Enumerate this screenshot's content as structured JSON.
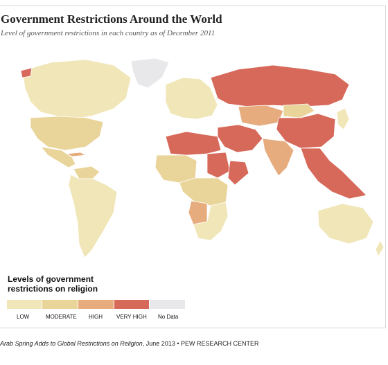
{
  "header": {
    "title": "Government Restrictions Around the World",
    "subtitle": "Level of government restrictions in each country as of December 2011"
  },
  "legend": {
    "title": "Levels of government restrictions on religion",
    "items": [
      {
        "label": "LOW",
        "color": "#f0e6b7"
      },
      {
        "label": "MODERATE",
        "color": "#e9d49a"
      },
      {
        "label": "HIGH",
        "color": "#e6ac7e"
      },
      {
        "label": "VERY HIGH",
        "color": "#d6695a"
      },
      {
        "label": "No Data",
        "color": "#e8e8ea"
      }
    ]
  },
  "map": {
    "regions": [
      {
        "name": "alaska-canada",
        "level": "LOW"
      },
      {
        "name": "united-states",
        "level": "MODERATE"
      },
      {
        "name": "mexico",
        "level": "MODERATE"
      },
      {
        "name": "cuba",
        "level": "HIGH"
      },
      {
        "name": "greenland",
        "level": "No Data"
      },
      {
        "name": "south-america",
        "level": "LOW"
      },
      {
        "name": "venezuela",
        "level": "MODERATE"
      },
      {
        "name": "europe",
        "level": "LOW"
      },
      {
        "name": "russia",
        "level": "VERY HIGH"
      },
      {
        "name": "north-africa",
        "level": "VERY HIGH"
      },
      {
        "name": "west-africa",
        "level": "MODERATE"
      },
      {
        "name": "sudan",
        "level": "VERY HIGH"
      },
      {
        "name": "east-africa",
        "level": "VERY HIGH"
      },
      {
        "name": "central-africa",
        "level": "MODERATE"
      },
      {
        "name": "angola",
        "level": "HIGH"
      },
      {
        "name": "southern-africa",
        "level": "LOW"
      },
      {
        "name": "middle-east",
        "level": "VERY HIGH"
      },
      {
        "name": "central-asia",
        "level": "HIGH"
      },
      {
        "name": "mongolia",
        "level": "MODERATE"
      },
      {
        "name": "china",
        "level": "VERY HIGH"
      },
      {
        "name": "india",
        "level": "HIGH"
      },
      {
        "name": "southeast-asia",
        "level": "VERY HIGH"
      },
      {
        "name": "japan-korea",
        "level": "LOW"
      },
      {
        "name": "australia",
        "level": "LOW"
      },
      {
        "name": "new-zealand",
        "level": "LOW"
      }
    ]
  },
  "footer": {
    "source_title": "Arab Spring Adds to Global Restrictions on Religion",
    "source_date": ", June 2013",
    "separator": " • ",
    "org": "PEW RESEARCH CENTER"
  }
}
